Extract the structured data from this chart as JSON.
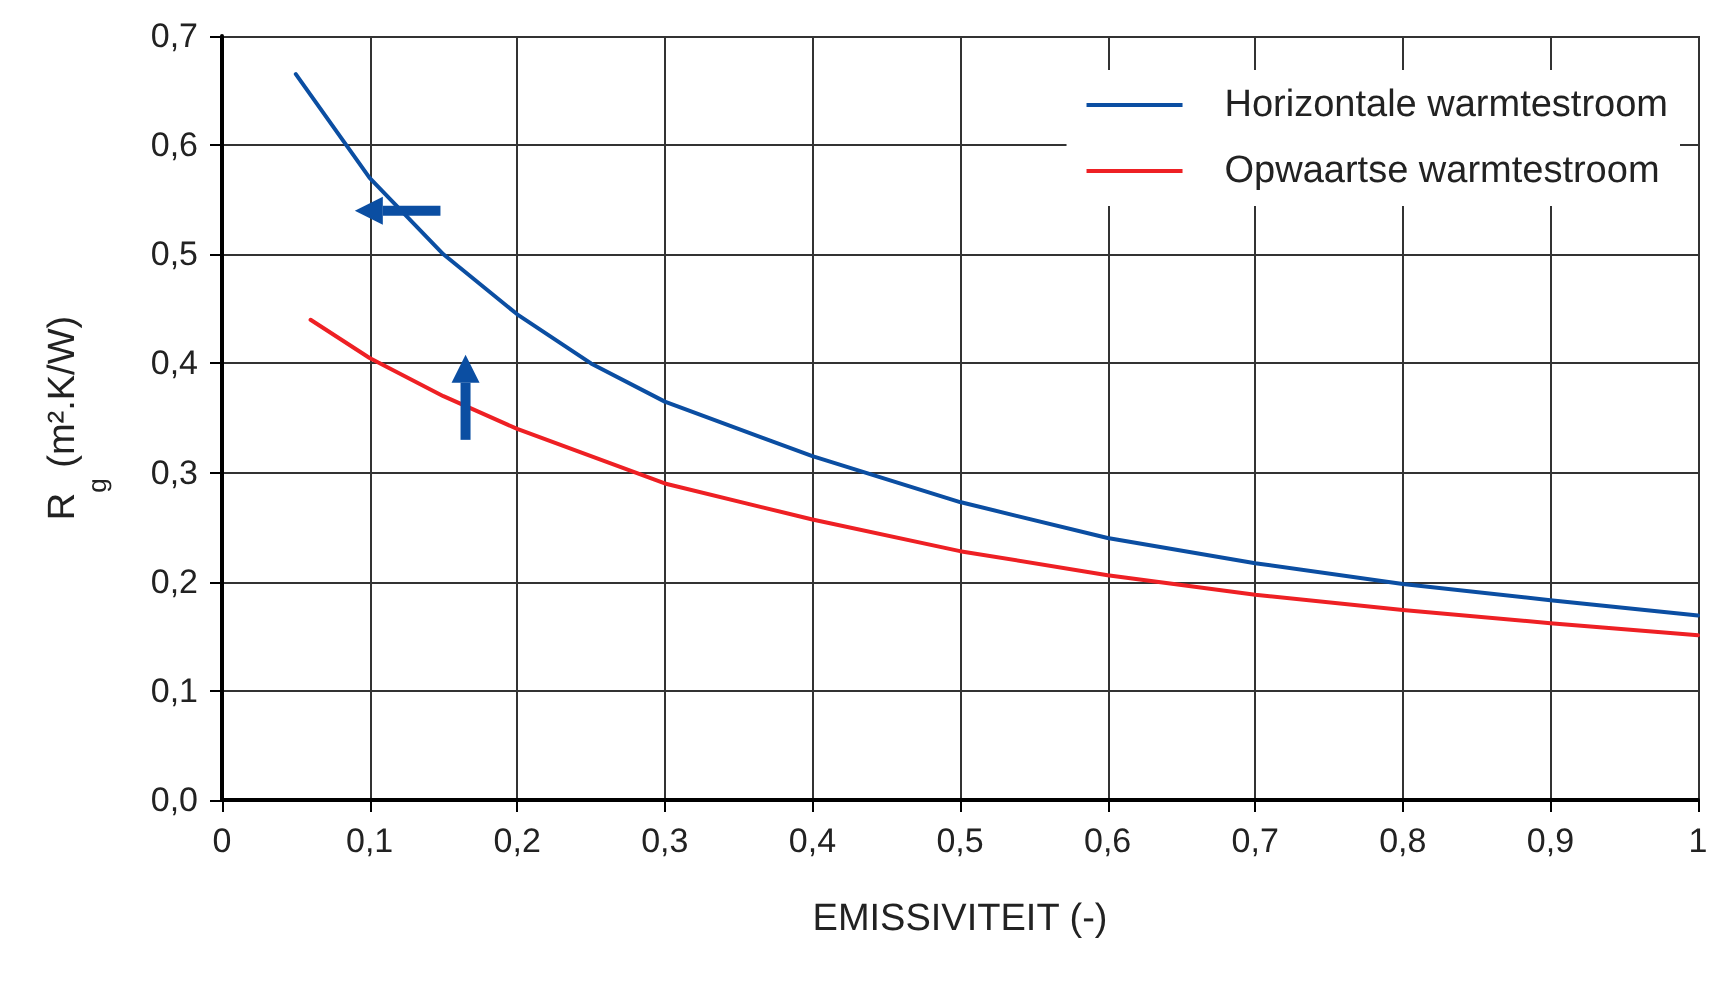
{
  "chart_data": {
    "type": "line",
    "xlabel": "EMISSIVITEIT (-)",
    "ylabel": "R$_{g}$ (m².K/W)",
    "xlim": [
      0,
      1
    ],
    "xticks": [
      0,
      {
        "value": 0.1,
        "label": "0,1"
      },
      {
        "value": 0.2,
        "label": "0,2"
      },
      {
        "value": 0.3,
        "label": "0,3"
      },
      {
        "value": 0.4,
        "label": "0,4"
      },
      {
        "value": 0.5,
        "label": "0,5"
      },
      {
        "value": 0.6,
        "label": "0,6"
      },
      {
        "value": 0.7,
        "label": "0,7"
      },
      {
        "value": 0.8,
        "label": "0,8"
      },
      {
        "value": 0.9,
        "label": "0,9"
      },
      1
    ],
    "ylim": [
      0,
      0.7
    ],
    "yticks": [
      {
        "value": 0,
        "label": "0,0"
      },
      {
        "value": 0.1,
        "label": "0,1"
      },
      {
        "value": 0.2,
        "label": "0,2"
      },
      {
        "value": 0.3,
        "label": "0,3"
      },
      {
        "value": 0.4,
        "label": "0,4"
      },
      {
        "value": 0.5,
        "label": "0,5"
      },
      {
        "value": 0.6,
        "label": "0,6"
      },
      {
        "value": 0.7,
        "label": "0,7"
      }
    ],
    "grid": true,
    "legend": "top right",
    "marker": "none",
    "line_style": "solid",
    "series": [
      {
        "name": "Horizontale warmtestroom",
        "color": "#0b4ea2",
        "x": [
          0.05,
          0.1,
          0.15,
          0.2,
          0.25,
          0.3,
          0.4,
          0.5,
          0.6,
          0.7,
          0.8,
          0.9,
          1.0
        ],
        "values": [
          0.665,
          0.57,
          0.5,
          0.445,
          0.4,
          0.365,
          0.315,
          0.273,
          0.24,
          0.217,
          0.198,
          0.183,
          0.169
        ]
      },
      {
        "name": "Opwaartse warmtestroom",
        "color": "#ee2024",
        "x": [
          0.06,
          0.1,
          0.15,
          0.2,
          0.3,
          0.4,
          0.5,
          0.6,
          0.7,
          0.8,
          0.9,
          1.0
        ],
        "values": [
          0.44,
          0.405,
          0.37,
          0.34,
          0.29,
          0.257,
          0.228,
          0.206,
          0.188,
          0.174,
          0.162,
          0.151
        ]
      }
    ]
  }
}
